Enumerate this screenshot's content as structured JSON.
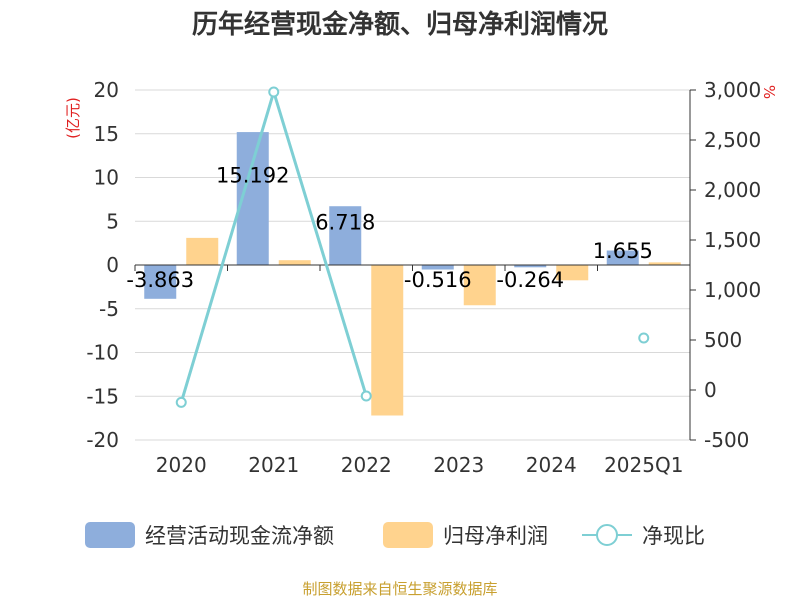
{
  "chart_data": {
    "type": "bar",
    "title": "历年经营现金净额、归母净利润情况",
    "categories": [
      "2020",
      "2021",
      "2022",
      "2023",
      "2024",
      "2025Q1"
    ],
    "left_unit": "(亿元)",
    "right_unit": "%",
    "ylim_left": [
      -20,
      20
    ],
    "yticks_left": [
      "20",
      "15",
      "10",
      "5",
      "0",
      "-5",
      "-10",
      "-15",
      "-20"
    ],
    "ylim_right": [
      -500,
      3000
    ],
    "yticks_right": [
      "3,000",
      "2,500",
      "2,000",
      "1,500",
      "1,000",
      "500",
      "0",
      "-500"
    ],
    "grid": true,
    "legend_position": "bottom",
    "series": [
      {
        "name": "经营活动现金流净额",
        "kind": "bar",
        "axis": "left",
        "color": "#8eaedc",
        "values": [
          -3.863,
          15.192,
          6.718,
          -0.516,
          -0.264,
          1.655
        ],
        "labels": [
          "-3.863",
          "15.192",
          "6.718",
          "-0.516",
          "-0.264",
          "1.655"
        ]
      },
      {
        "name": "归母净利润",
        "kind": "bar",
        "axis": "left",
        "color": "#ffd38e",
        "values": [
          3.1,
          0.55,
          -17.2,
          -4.6,
          -1.75,
          0.3
        ]
      },
      {
        "name": "净现比",
        "kind": "line",
        "axis": "right",
        "color": "#7ecfd4",
        "values": [
          -124,
          2980,
          -60,
          null,
          null,
          520
        ]
      }
    ]
  },
  "source_note": "制图数据来自恒生聚源数据库"
}
